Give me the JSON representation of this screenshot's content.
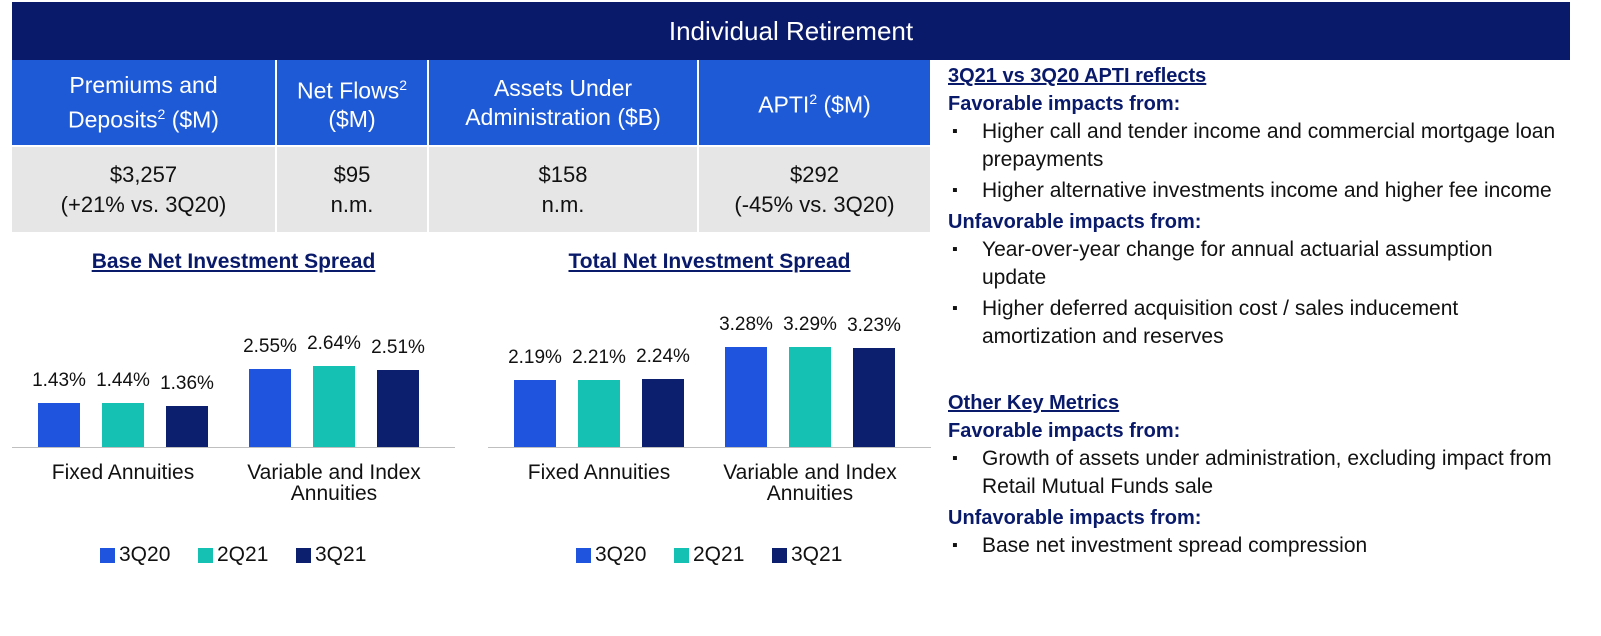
{
  "header": {
    "title": "Individual Retirement"
  },
  "table": {
    "headers": [
      {
        "text": "Premiums and Deposits",
        "sup": "2",
        "unit": "($M)"
      },
      {
        "text": "Net Flows",
        "sup": "2",
        "unit": "($M)"
      },
      {
        "text": "Assets Under Administration",
        "unit": "($B)"
      },
      {
        "text": "APTI",
        "sup": "2",
        "unit": "($M)"
      }
    ],
    "rows": [
      [
        [
          "$3,257",
          "(+21% vs. 3Q20)"
        ],
        [
          "$95",
          "n.m."
        ],
        [
          "$158",
          "n.m."
        ],
        [
          "$292",
          "(-45% vs. 3Q20)"
        ]
      ]
    ]
  },
  "chart_data": [
    {
      "type": "bar",
      "title": "Base Net Investment Spread",
      "categories": [
        "Fixed Annuities",
        "Variable and Index Annuities"
      ],
      "series": [
        {
          "name": "3Q20",
          "color": "#1f55de",
          "values": [
            1.43,
            2.55
          ],
          "value_labels": [
            "1.43%",
            "2.55%"
          ]
        },
        {
          "name": "2Q21",
          "color": "#14c1b3",
          "values": [
            1.44,
            2.64
          ],
          "value_labels": [
            "1.44%",
            "2.64%"
          ]
        },
        {
          "name": "3Q21",
          "color": "#0b1f6e",
          "values": [
            1.36,
            2.51
          ],
          "value_labels": [
            "1.36%",
            "2.51%"
          ]
        }
      ],
      "ylim": [
        0,
        4
      ]
    },
    {
      "type": "bar",
      "title": "Total Net Investment Spread",
      "categories": [
        "Fixed Annuities",
        "Variable and Index Annuities"
      ],
      "series": [
        {
          "name": "3Q20",
          "color": "#1f55de",
          "values": [
            2.19,
            3.28
          ],
          "value_labels": [
            "2.19%",
            "3.28%"
          ]
        },
        {
          "name": "2Q21",
          "color": "#14c1b3",
          "values": [
            2.21,
            3.29
          ],
          "value_labels": [
            "2.21%",
            "3.29%"
          ]
        },
        {
          "name": "3Q21",
          "color": "#0b1f6e",
          "values": [
            2.24,
            3.23
          ],
          "value_labels": [
            "2.24%",
            "3.23%"
          ]
        }
      ],
      "ylim": [
        0,
        4
      ]
    }
  ],
  "notes": [
    {
      "heading": "3Q21 vs 3Q20 APTI reflects",
      "groups": [
        {
          "label": "Favorable impacts from:",
          "items": [
            "Higher call and tender income and commercial mortgage loan prepayments",
            "Higher alternative investments income and higher fee income"
          ]
        },
        {
          "label": "Unfavorable impacts from:",
          "items": [
            "Year-over-year change for annual actuarial assumption update",
            "Higher deferred acquisition cost / sales inducement amortization and reserves"
          ]
        }
      ]
    },
    {
      "heading": "Other Key Metrics",
      "groups": [
        {
          "label": "Favorable impacts from:",
          "items": [
            "Growth of assets under administration, excluding impact from Retail Mutual Funds sale"
          ]
        },
        {
          "label": "Unfavorable impacts from:",
          "items": [
            "Base net investment spread compression"
          ]
        }
      ]
    }
  ]
}
